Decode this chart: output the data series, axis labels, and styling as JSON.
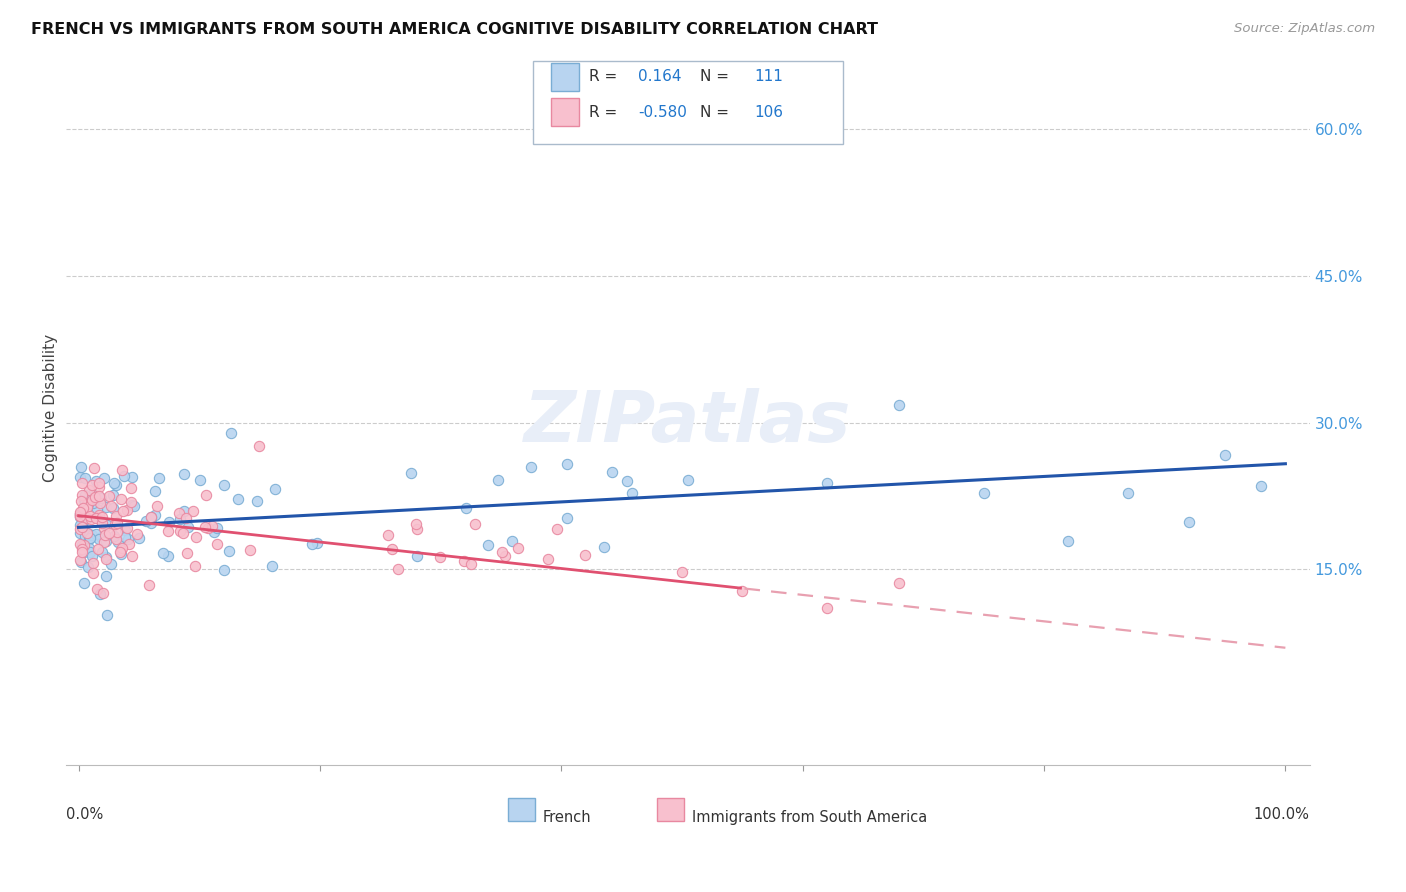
{
  "title": "FRENCH VS IMMIGRANTS FROM SOUTH AMERICA COGNITIVE DISABILITY CORRELATION CHART",
  "source": "Source: ZipAtlas.com",
  "ylabel": "Cognitive Disability",
  "r_french": 0.164,
  "n_french": 111,
  "r_immigrants": -0.58,
  "n_immigrants": 106,
  "french_dot_face": "#b8d4f0",
  "french_dot_edge": "#7aadd4",
  "immigrants_dot_face": "#f8c0ce",
  "immigrants_dot_edge": "#e888a0",
  "line_french_color": "#2255aa",
  "line_immigrants_solid": "#e05070",
  "line_immigrants_dash": "#e8a0b0",
  "watermark": "ZIPatlas",
  "yticks": [
    0.15,
    0.3,
    0.45,
    0.6
  ],
  "ytick_labels": [
    "15.0%",
    "30.0%",
    "45.0%",
    "60.0%"
  ],
  "ylim": [
    -0.05,
    0.68
  ],
  "xlim": [
    -0.01,
    1.02
  ]
}
